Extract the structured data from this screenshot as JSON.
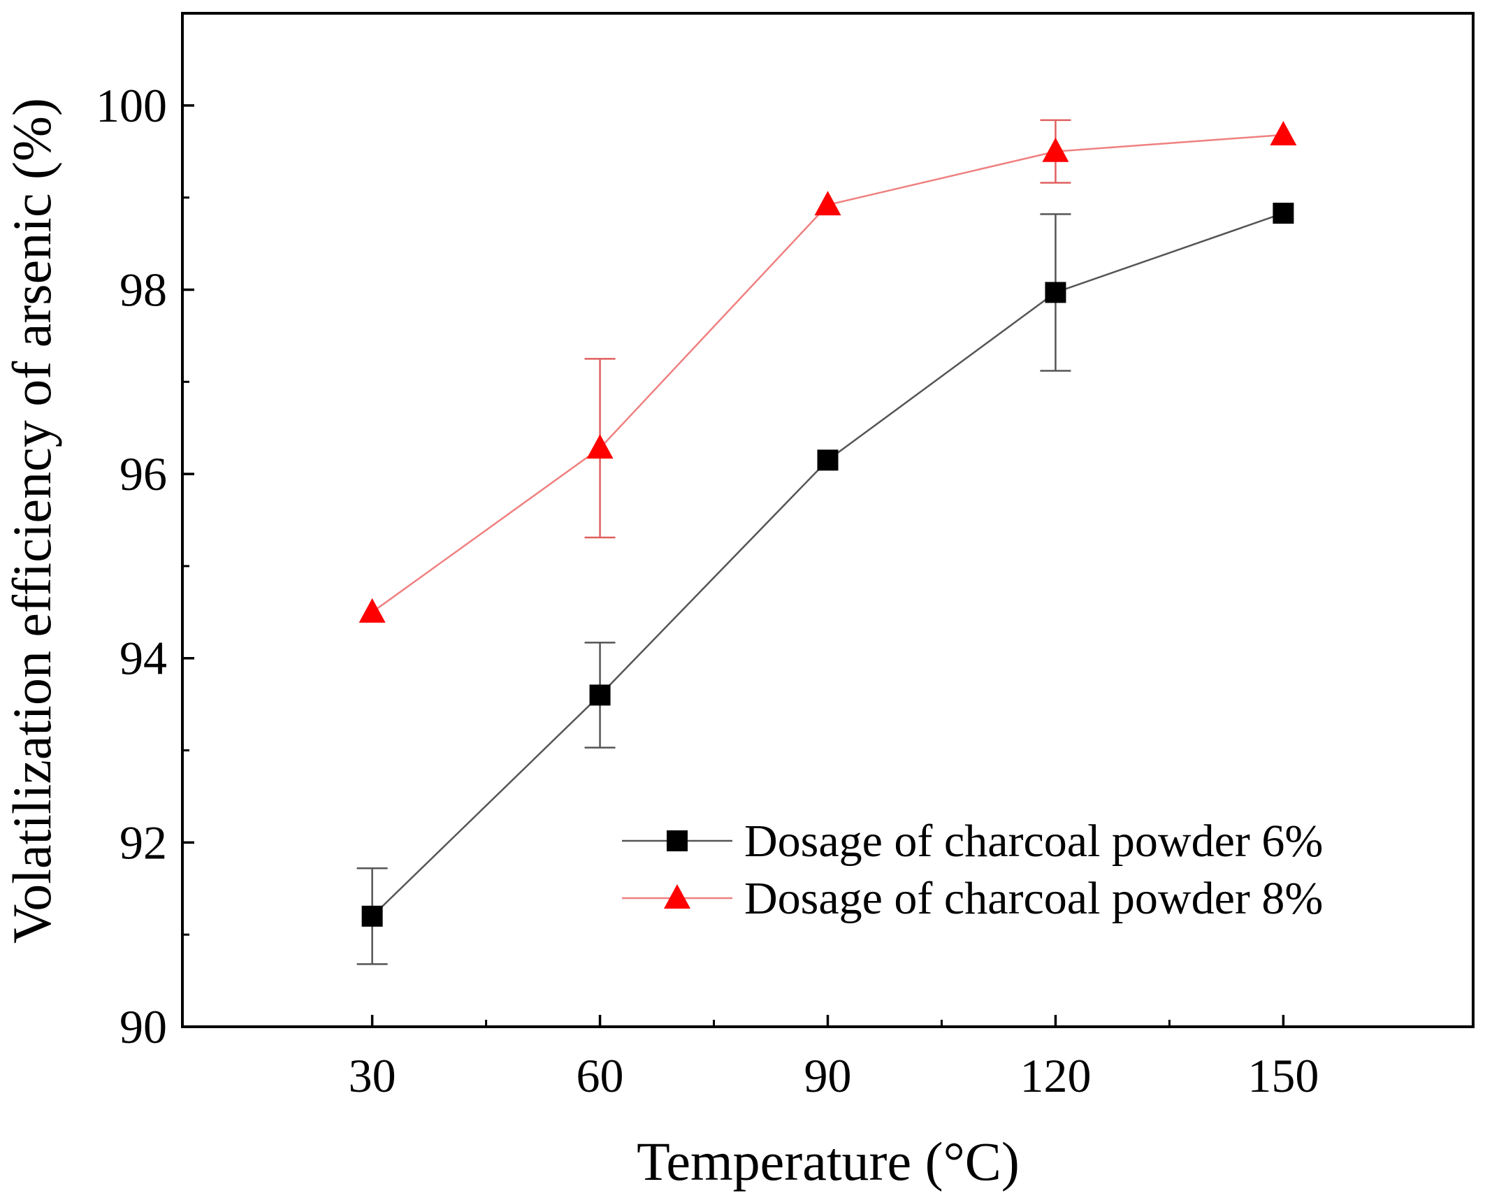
{
  "chart_data": {
    "type": "line",
    "title": "",
    "xlabel": "Temperature (°C)",
    "ylabel": "Volatilization efficiency of arsenic (%)",
    "xlim": [
      5,
      175
    ],
    "ylim": [
      90,
      101
    ],
    "x_major_ticks": [
      30,
      60,
      90,
      120,
      150
    ],
    "x_minor_ticks": [
      45,
      75,
      105,
      135
    ],
    "y_major_ticks": [
      90,
      92,
      94,
      96,
      98,
      100
    ],
    "y_minor_ticks": [
      91,
      93,
      95,
      97,
      99
    ],
    "x_tick_labels": [
      "30",
      "60",
      "90",
      "120",
      "150"
    ],
    "y_tick_labels": [
      "90",
      "92",
      "94",
      "96",
      "98",
      "100"
    ],
    "grid": false,
    "legend_position": "bottom-right",
    "series": [
      {
        "name": "Dosage of charcoal powder 6%",
        "marker": "square",
        "color": "#000000",
        "line_color": "#555555",
        "x": [
          30,
          60,
          90,
          120,
          150
        ],
        "y": [
          91.2,
          93.6,
          96.15,
          97.97,
          98.83
        ],
        "error": [
          0.52,
          0.57,
          null,
          0.85,
          null
        ]
      },
      {
        "name": "Dosage of charcoal powder 8%",
        "marker": "triangle",
        "color": "#ff0000",
        "line_color": "#f08080",
        "x": [
          30,
          60,
          90,
          120,
          150
        ],
        "y": [
          94.5,
          96.28,
          98.92,
          99.5,
          99.68
        ],
        "error": [
          null,
          0.97,
          null,
          0.34,
          null
        ]
      }
    ]
  }
}
